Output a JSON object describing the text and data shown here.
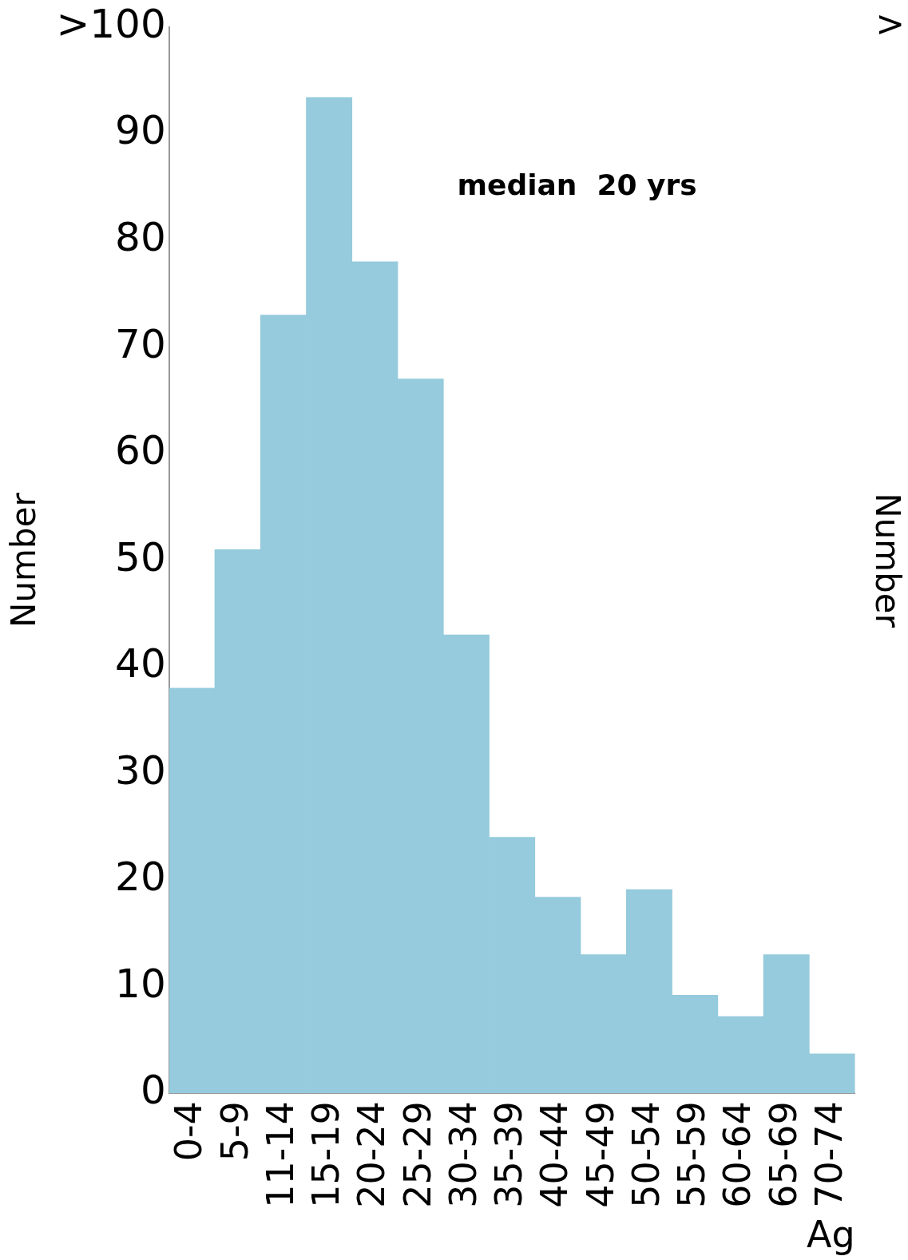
{
  "chart_data": {
    "type": "bar",
    "categories": [
      "0-4",
      "5-9",
      "11-14",
      "15-19",
      "20-24",
      "25-29",
      "30-34",
      "35-39",
      "40-44",
      "45-49",
      "50-54",
      "55-59",
      "60-64",
      "65-69",
      "70-74"
    ],
    "values": [
      38,
      51,
      73,
      93.4,
      78,
      67,
      43,
      24,
      18.4,
      13,
      19.1,
      9.2,
      7.2,
      13,
      3.7
    ],
    "color": "#95cbdc",
    "xlabel": "Ag",
    "ylabel": "Number",
    "y2label": "Number",
    "ylim": [
      0,
      100
    ],
    "yticks": [
      0,
      10,
      20,
      30,
      40,
      50,
      60,
      70,
      80,
      90,
      {
        "value": 100,
        "label": ">100"
      }
    ],
    "annotations": [
      "median  20 yrs",
      ">"
    ],
    "grid": false,
    "legend": false
  }
}
